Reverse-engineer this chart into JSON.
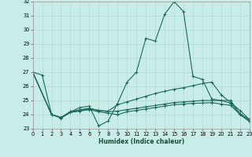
{
  "xlabel": "Humidex (Indice chaleur)",
  "bg_color": "#c8ede8",
  "grid_color": "#b0d8d0",
  "line_color": "#1a6b5a",
  "xlim": [
    0,
    23
  ],
  "ylim": [
    23,
    32
  ],
  "xticks": [
    0,
    1,
    2,
    3,
    4,
    5,
    6,
    7,
    8,
    9,
    10,
    11,
    12,
    13,
    14,
    15,
    16,
    17,
    18,
    19,
    20,
    21,
    22,
    23
  ],
  "yticks": [
    23,
    24,
    25,
    26,
    27,
    28,
    29,
    30,
    31,
    32
  ],
  "curves": [
    {
      "x": [
        0,
        1,
        2,
        3,
        4,
        5,
        6,
        7,
        8,
        9,
        10,
        11,
        12,
        13,
        14,
        15,
        16,
        17,
        18,
        19,
        20,
        21,
        22,
        23
      ],
      "y": [
        27.0,
        26.8,
        24.0,
        23.8,
        24.2,
        24.5,
        24.6,
        23.2,
        23.55,
        24.8,
        26.3,
        27.0,
        29.4,
        29.2,
        31.1,
        32.0,
        31.3,
        26.7,
        26.5,
        25.1,
        25.0,
        24.8,
        24.05,
        23.65
      ]
    },
    {
      "x": [
        0,
        2,
        3,
        4,
        5,
        6,
        7,
        8,
        9,
        10,
        11,
        12,
        13,
        14,
        15,
        16,
        17,
        18,
        19,
        20,
        21,
        22,
        23
      ],
      "y": [
        27.0,
        24.0,
        23.8,
        24.2,
        24.35,
        24.45,
        24.3,
        24.25,
        24.7,
        24.9,
        25.1,
        25.3,
        25.5,
        25.65,
        25.8,
        25.9,
        26.05,
        26.2,
        26.3,
        25.4,
        24.85,
        24.3,
        23.65
      ]
    },
    {
      "x": [
        0,
        2,
        3,
        4,
        5,
        6,
        7,
        8,
        9,
        10,
        11,
        12,
        13,
        14,
        15,
        16,
        17,
        18,
        19,
        20,
        21,
        22,
        23
      ],
      "y": [
        27.0,
        24.0,
        23.8,
        24.2,
        24.3,
        24.4,
        24.3,
        24.2,
        24.25,
        24.35,
        24.45,
        24.55,
        24.65,
        24.75,
        24.85,
        24.9,
        24.95,
        25.0,
        25.0,
        25.0,
        25.0,
        24.05,
        23.55
      ]
    },
    {
      "x": [
        0,
        2,
        3,
        4,
        5,
        6,
        7,
        8,
        9,
        10,
        11,
        12,
        13,
        14,
        15,
        16,
        17,
        18,
        19,
        20,
        21,
        22,
        23
      ],
      "y": [
        27.0,
        24.0,
        23.75,
        24.15,
        24.25,
        24.35,
        24.2,
        24.1,
        24.0,
        24.2,
        24.3,
        24.4,
        24.5,
        24.6,
        24.7,
        24.75,
        24.8,
        24.82,
        24.85,
        24.75,
        24.65,
        24.0,
        23.5
      ]
    }
  ]
}
